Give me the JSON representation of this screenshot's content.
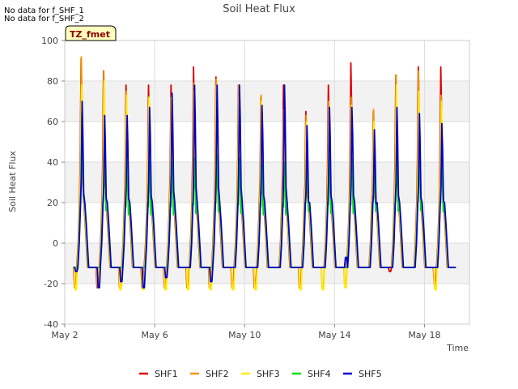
{
  "notes": [
    "No data for f_SHF_1",
    "No data for f_SHF_2"
  ],
  "site_label": "TZ_fmet",
  "chart_data": {
    "type": "line",
    "title": "Soil Heat Flux",
    "xlabel": "Time",
    "ylabel": "Soil Heat Flux",
    "xlim": [
      0,
      18
    ],
    "ylim": [
      -40,
      100
    ],
    "yticks": [
      -40,
      -20,
      0,
      20,
      40,
      60,
      80,
      100
    ],
    "xticks": [
      {
        "day": 0,
        "label": "May 2"
      },
      {
        "day": 4,
        "label": "May 6"
      },
      {
        "day": 8,
        "label": "May 10"
      },
      {
        "day": 12,
        "label": "May 14"
      },
      {
        "day": 16,
        "label": "May 18"
      }
    ],
    "grid_bands": true,
    "legend_position": "bottom",
    "day_start": 0.4,
    "days": 17,
    "night_value": -12,
    "series": [
      {
        "name": "SHF1",
        "color": "#dd0000",
        "peaks": [
          91,
          85,
          78,
          78,
          78,
          87,
          82,
          78,
          72,
          78,
          65,
          78,
          89,
          65,
          83,
          87,
          87
        ],
        "troughs": [
          -22,
          -22,
          -22,
          -22,
          -22,
          -22,
          -22,
          -22,
          -22,
          -12,
          -22,
          -12,
          -12,
          -12,
          -14,
          -12,
          -20
        ]
      },
      {
        "name": "SHF2",
        "color": "#ee9900",
        "peaks": [
          92,
          85,
          75,
          72,
          72,
          79,
          81,
          78,
          73,
          66,
          63,
          70,
          72,
          66,
          83,
          85,
          73
        ],
        "troughs": [
          -22,
          -16,
          -22,
          -22,
          -22,
          -22,
          -22,
          -22,
          -22,
          -12,
          -22,
          -22,
          -20,
          -12,
          -12,
          -12,
          -22
        ]
      },
      {
        "name": "SHF3",
        "color": "#ffee00",
        "peaks": [
          78,
          80,
          73,
          72,
          72,
          75,
          78,
          72,
          70,
          60,
          60,
          58,
          68,
          60,
          78,
          75,
          70
        ],
        "troughs": [
          -23,
          -22,
          -23,
          -23,
          -23,
          -23,
          -23,
          -23,
          -23,
          -12,
          -23,
          -23,
          -22,
          -12,
          -12,
          -12,
          -23
        ]
      },
      {
        "name": "SHF4",
        "color": "#00dd00",
        "peaks": [
          64,
          46,
          40,
          40,
          40,
          42,
          44,
          42,
          40,
          40,
          45,
          42,
          42,
          45,
          45,
          46,
          44
        ],
        "troughs": [
          -12,
          -12,
          -12,
          -12,
          -12,
          -12,
          -12,
          -12,
          -12,
          -12,
          -12,
          -12,
          -12,
          -12,
          -12,
          -12,
          -12
        ]
      },
      {
        "name": "SHF5",
        "color": "#0000cc",
        "peaks": [
          70,
          63,
          63,
          67,
          74,
          78,
          78,
          78,
          68,
          78,
          58,
          67,
          67,
          56,
          67,
          64,
          59
        ],
        "troughs": [
          -14,
          -22,
          -19,
          -22,
          -17,
          -12,
          -19,
          -12,
          -12,
          -12,
          -12,
          -12,
          -7,
          -12,
          -12,
          -12,
          -12
        ]
      }
    ]
  }
}
